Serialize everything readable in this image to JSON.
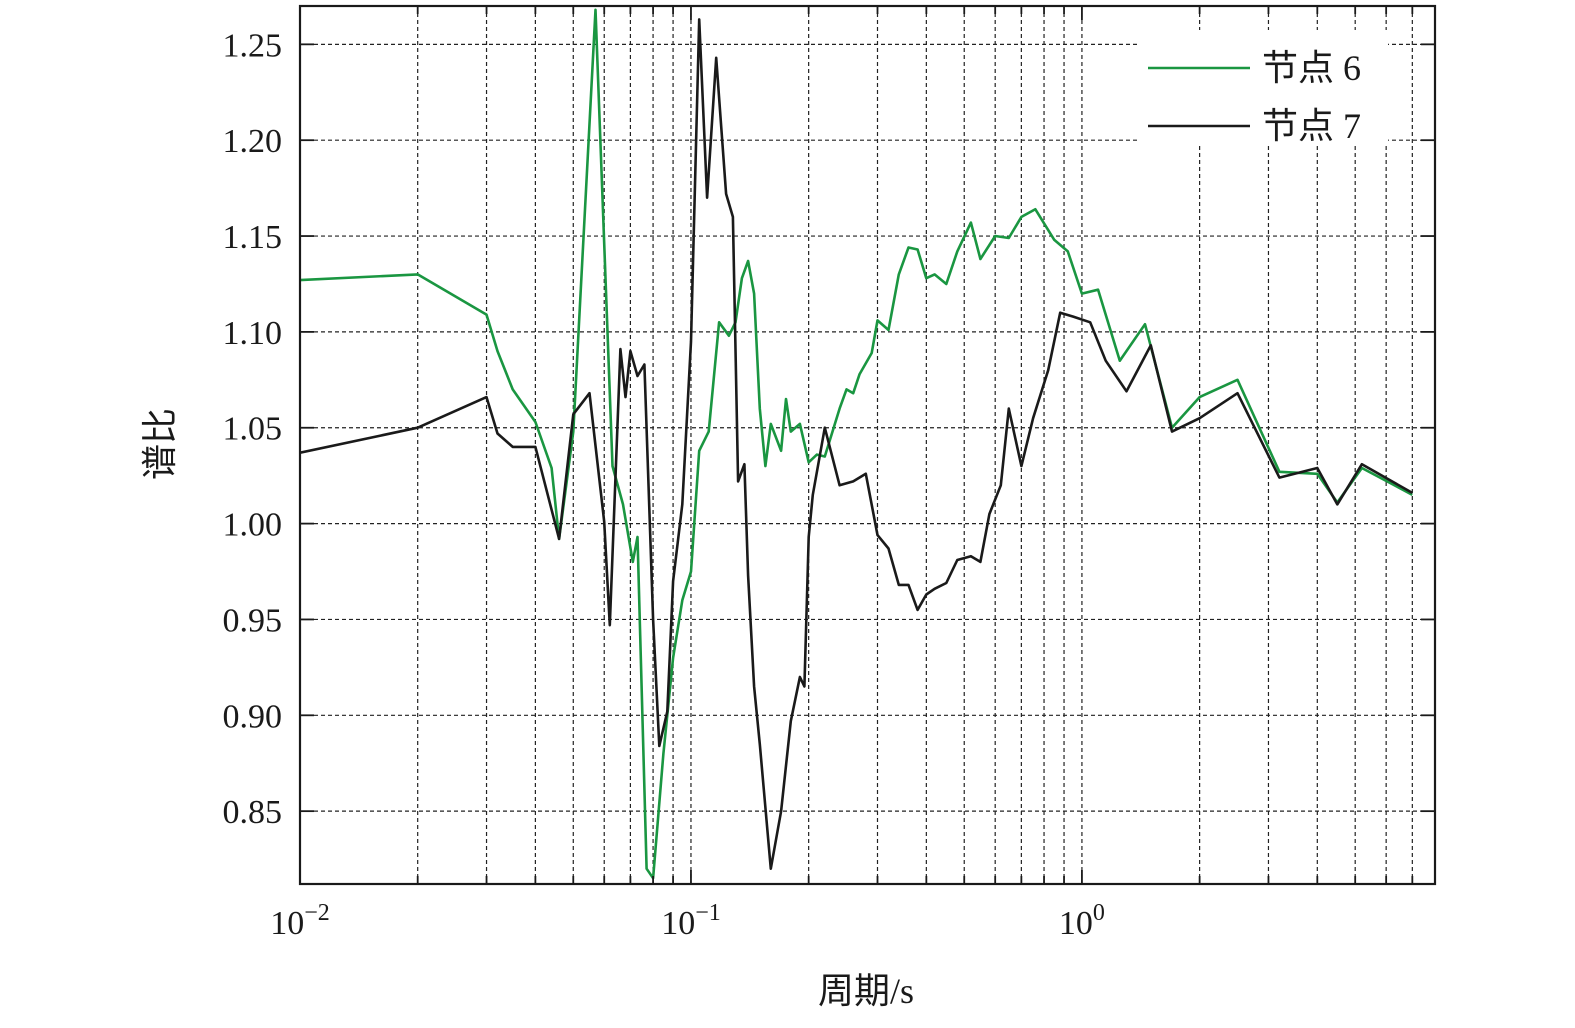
{
  "chart_data": {
    "type": "line",
    "xscale": "log",
    "xlim": [
      0.01,
      8
    ],
    "ylim": [
      0.812,
      1.27
    ],
    "xlabel": "周期/s",
    "ylabel": "谱比",
    "grid": true,
    "legend_position": "top-right",
    "x_ticks": [
      {
        "value": 0.01,
        "base": "10",
        "exp": "−2"
      },
      {
        "value": 0.1,
        "base": "10",
        "exp": "−1"
      },
      {
        "value": 1,
        "base": "10",
        "exp": "0"
      }
    ],
    "y_ticks": [
      {
        "value": 0.85,
        "label": "0.85"
      },
      {
        "value": 0.9,
        "label": "0.90"
      },
      {
        "value": 0.95,
        "label": "0.95"
      },
      {
        "value": 1.0,
        "label": "1.00"
      },
      {
        "value": 1.05,
        "label": "1.05"
      },
      {
        "value": 1.1,
        "label": "1.10"
      },
      {
        "value": 1.15,
        "label": "1.15"
      },
      {
        "value": 1.2,
        "label": "1.20"
      },
      {
        "value": 1.25,
        "label": "1.25"
      }
    ],
    "series": [
      {
        "name": "节点 6",
        "color": "#1a9641",
        "points": [
          [
            0.01,
            1.127
          ],
          [
            0.02,
            1.13
          ],
          [
            0.03,
            1.109
          ],
          [
            0.032,
            1.09
          ],
          [
            0.035,
            1.07
          ],
          [
            0.04,
            1.053
          ],
          [
            0.044,
            1.029
          ],
          [
            0.046,
            0.992
          ],
          [
            0.05,
            1.048
          ],
          [
            0.057,
            1.268
          ],
          [
            0.063,
            1.03
          ],
          [
            0.067,
            1.01
          ],
          [
            0.071,
            0.98
          ],
          [
            0.073,
            0.993
          ],
          [
            0.077,
            0.82
          ],
          [
            0.08,
            0.815
          ],
          [
            0.085,
            0.88
          ],
          [
            0.09,
            0.93
          ],
          [
            0.095,
            0.96
          ],
          [
            0.1,
            0.975
          ],
          [
            0.105,
            1.038
          ],
          [
            0.111,
            1.048
          ],
          [
            0.118,
            1.105
          ],
          [
            0.125,
            1.098
          ],
          [
            0.13,
            1.105
          ],
          [
            0.135,
            1.128
          ],
          [
            0.14,
            1.137
          ],
          [
            0.145,
            1.12
          ],
          [
            0.15,
            1.06
          ],
          [
            0.155,
            1.03
          ],
          [
            0.16,
            1.052
          ],
          [
            0.17,
            1.038
          ],
          [
            0.175,
            1.065
          ],
          [
            0.18,
            1.048
          ],
          [
            0.19,
            1.052
          ],
          [
            0.2,
            1.032
          ],
          [
            0.21,
            1.036
          ],
          [
            0.22,
            1.035
          ],
          [
            0.24,
            1.06
          ],
          [
            0.25,
            1.07
          ],
          [
            0.26,
            1.068
          ],
          [
            0.27,
            1.078
          ],
          [
            0.29,
            1.089
          ],
          [
            0.3,
            1.106
          ],
          [
            0.32,
            1.101
          ],
          [
            0.34,
            1.13
          ],
          [
            0.36,
            1.144
          ],
          [
            0.38,
            1.143
          ],
          [
            0.4,
            1.128
          ],
          [
            0.42,
            1.13
          ],
          [
            0.45,
            1.125
          ],
          [
            0.48,
            1.142
          ],
          [
            0.52,
            1.157
          ],
          [
            0.55,
            1.138
          ],
          [
            0.6,
            1.15
          ],
          [
            0.65,
            1.149
          ],
          [
            0.7,
            1.16
          ],
          [
            0.76,
            1.164
          ],
          [
            0.85,
            1.148
          ],
          [
            0.92,
            1.142
          ],
          [
            1.0,
            1.12
          ],
          [
            1.1,
            1.122
          ],
          [
            1.25,
            1.085
          ],
          [
            1.45,
            1.104
          ],
          [
            1.7,
            1.05
          ],
          [
            2.0,
            1.066
          ],
          [
            2.5,
            1.075
          ],
          [
            3.2,
            1.027
          ],
          [
            4.0,
            1.026
          ],
          [
            4.5,
            1.011
          ],
          [
            5.2,
            1.029
          ],
          [
            7.0,
            1.015
          ]
        ]
      },
      {
        "name": "节点 7",
        "color": "#1a1a1a",
        "points": [
          [
            0.01,
            1.037
          ],
          [
            0.02,
            1.05
          ],
          [
            0.03,
            1.066
          ],
          [
            0.032,
            1.047
          ],
          [
            0.035,
            1.04
          ],
          [
            0.04,
            1.04
          ],
          [
            0.046,
            0.992
          ],
          [
            0.05,
            1.057
          ],
          [
            0.055,
            1.068
          ],
          [
            0.06,
            1.001
          ],
          [
            0.062,
            0.947
          ],
          [
            0.066,
            1.091
          ],
          [
            0.068,
            1.066
          ],
          [
            0.07,
            1.09
          ],
          [
            0.073,
            1.077
          ],
          [
            0.076,
            1.083
          ],
          [
            0.08,
            0.95
          ],
          [
            0.083,
            0.884
          ],
          [
            0.087,
            0.902
          ],
          [
            0.09,
            0.97
          ],
          [
            0.095,
            1.01
          ],
          [
            0.1,
            1.095
          ],
          [
            0.105,
            1.263
          ],
          [
            0.11,
            1.17
          ],
          [
            0.116,
            1.243
          ],
          [
            0.123,
            1.172
          ],
          [
            0.128,
            1.16
          ],
          [
            0.132,
            1.022
          ],
          [
            0.137,
            1.031
          ],
          [
            0.14,
            0.973
          ],
          [
            0.145,
            0.915
          ],
          [
            0.15,
            0.885
          ],
          [
            0.16,
            0.82
          ],
          [
            0.17,
            0.85
          ],
          [
            0.18,
            0.897
          ],
          [
            0.19,
            0.92
          ],
          [
            0.195,
            0.915
          ],
          [
            0.2,
            0.993
          ],
          [
            0.205,
            1.015
          ],
          [
            0.22,
            1.05
          ],
          [
            0.24,
            1.02
          ],
          [
            0.26,
            1.022
          ],
          [
            0.28,
            1.026
          ],
          [
            0.3,
            0.994
          ],
          [
            0.32,
            0.987
          ],
          [
            0.34,
            0.968
          ],
          [
            0.36,
            0.968
          ],
          [
            0.38,
            0.955
          ],
          [
            0.4,
            0.963
          ],
          [
            0.42,
            0.966
          ],
          [
            0.45,
            0.969
          ],
          [
            0.48,
            0.981
          ],
          [
            0.52,
            0.983
          ],
          [
            0.55,
            0.98
          ],
          [
            0.58,
            1.005
          ],
          [
            0.62,
            1.02
          ],
          [
            0.65,
            1.06
          ],
          [
            0.7,
            1.03
          ],
          [
            0.75,
            1.055
          ],
          [
            0.82,
            1.08
          ],
          [
            0.88,
            1.11
          ],
          [
            0.95,
            1.108
          ],
          [
            1.05,
            1.105
          ],
          [
            1.15,
            1.085
          ],
          [
            1.3,
            1.069
          ],
          [
            1.5,
            1.093
          ],
          [
            1.7,
            1.048
          ],
          [
            2.0,
            1.055
          ],
          [
            2.5,
            1.068
          ],
          [
            3.2,
            1.024
          ],
          [
            4.0,
            1.029
          ],
          [
            4.5,
            1.01
          ],
          [
            5.2,
            1.031
          ],
          [
            7.0,
            1.016
          ]
        ]
      }
    ]
  }
}
